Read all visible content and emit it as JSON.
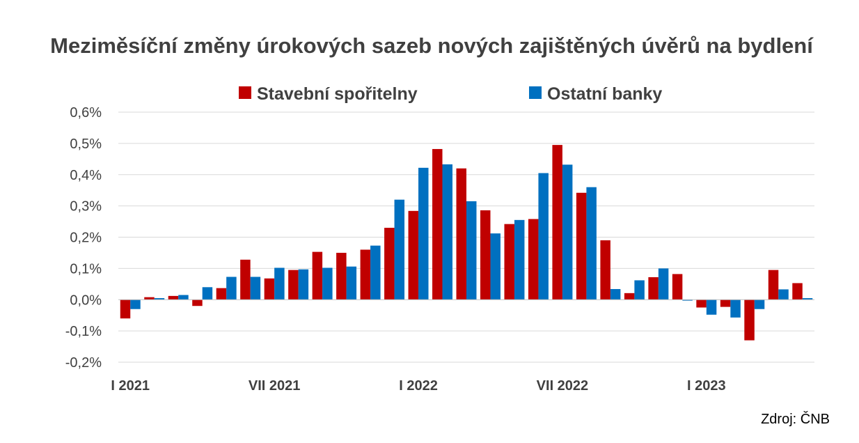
{
  "chart_data": {
    "type": "bar",
    "title": "Meziměsíční změny úrokových sazeb nových zajištěných úvěrů na bydlení",
    "source": "Zdroj: ČNB",
    "ylim": [
      -0.2,
      0.6
    ],
    "yticks": [
      -0.2,
      -0.1,
      0.0,
      0.1,
      0.2,
      0.3,
      0.4,
      0.5,
      0.6
    ],
    "ytick_labels": [
      "-0,2%",
      "-0,1%",
      "0,0%",
      "0,1%",
      "0,2%",
      "0,3%",
      "0,4%",
      "0,5%",
      "0,6%"
    ],
    "grid": true,
    "legend_position": "top",
    "categories": [
      "I 2021",
      "II 2021",
      "III 2021",
      "IV 2021",
      "V 2021",
      "VI 2021",
      "VII 2021",
      "VIII 2021",
      "IX 2021",
      "X 2021",
      "XI 2021",
      "XII 2021",
      "I 2022",
      "II 2022",
      "III 2022",
      "IV 2022",
      "V 2022",
      "VI 2022",
      "VII 2022",
      "VIII 2022",
      "IX 2022",
      "X 2022",
      "XI 2022",
      "XII 2022",
      "I 2023",
      "II 2023",
      "III 2023",
      "IV 2023",
      "V 2023"
    ],
    "xtick_labels": [
      {
        "index": 0,
        "label": "I 2021"
      },
      {
        "index": 6,
        "label": "VII 2021"
      },
      {
        "index": 12,
        "label": "I 2022"
      },
      {
        "index": 18,
        "label": "VII 2022"
      },
      {
        "index": 24,
        "label": "I 2023"
      }
    ],
    "series": [
      {
        "name": "Stavební spořitelny",
        "color": "#C00000",
        "values": [
          -0.06,
          0.008,
          0.012,
          -0.02,
          0.037,
          0.128,
          0.068,
          0.095,
          0.153,
          0.15,
          0.16,
          0.23,
          0.284,
          0.482,
          0.42,
          0.286,
          0.242,
          0.258,
          0.495,
          0.342,
          0.19,
          0.021,
          0.072,
          0.082,
          -0.025,
          -0.023,
          -0.13,
          0.095,
          0.053
        ]
      },
      {
        "name": "Ostatní banky",
        "color": "#0070C0",
        "values": [
          -0.03,
          0.005,
          0.015,
          0.04,
          0.073,
          0.073,
          0.102,
          0.097,
          0.102,
          0.106,
          0.173,
          0.32,
          0.422,
          0.433,
          0.315,
          0.212,
          0.255,
          0.405,
          0.432,
          0.36,
          0.034,
          0.062,
          0.1,
          -0.003,
          -0.048,
          -0.057,
          -0.03,
          0.033,
          0.005
        ]
      }
    ]
  }
}
